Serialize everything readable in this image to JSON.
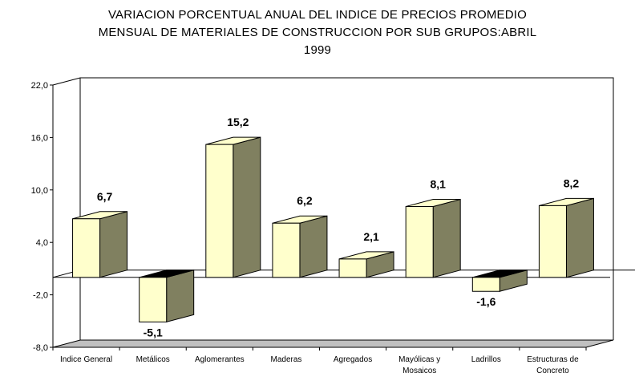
{
  "chart_data": {
    "type": "bar",
    "title_lines": [
      "VARIACION PORCENTUAL ANUAL DEL INDICE DE PRECIOS PROMEDIO",
      "MENSUAL DE MATERIALES DE CONSTRUCCION POR SUB GRUPOS:ABRIL",
      "1999"
    ],
    "xlabel": "",
    "ylabel": "",
    "categories": [
      [
        "Indice General"
      ],
      [
        "Metálicos"
      ],
      [
        "Aglomerantes"
      ],
      [
        "Maderas"
      ],
      [
        "Agregados"
      ],
      [
        "Mayólicas y",
        "Mosaicos"
      ],
      [
        "Ladrillos"
      ],
      [
        "Estructuras de",
        "Concreto"
      ]
    ],
    "values": [
      6.7,
      -5.1,
      15.2,
      6.2,
      2.1,
      8.1,
      -1.6,
      8.2
    ],
    "data_labels": [
      "6,7",
      "-5,1",
      "15,2",
      "6,2",
      "2,1",
      "8,1",
      "-1,6",
      "8,2"
    ],
    "ylim": [
      -8,
      22
    ],
    "yticks": [
      22,
      16,
      10,
      4,
      -2,
      -8
    ],
    "ytick_labels": [
      "22,0",
      "16,0",
      "10,0",
      "4,0",
      "-2,0",
      "-8,0"
    ],
    "grid": false,
    "legend": "none",
    "style": "3d-column",
    "colors": {
      "bar_front": "#ffffcc",
      "bar_side": "#808060",
      "bar_top": "#ffffcc",
      "floor": "#c0c0c0",
      "neg_top": "#000000"
    }
  }
}
